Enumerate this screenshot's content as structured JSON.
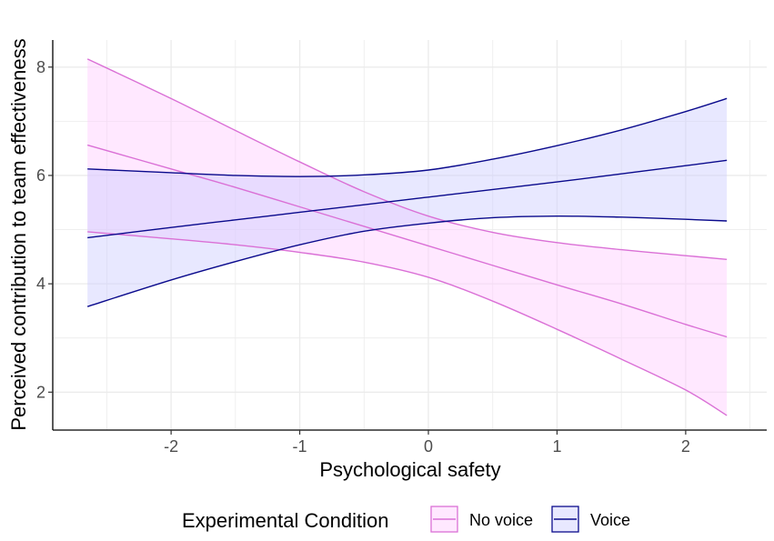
{
  "chart_data": {
    "type": "line",
    "xlabel": "Psychological safety",
    "ylabel": "Perceived contribution to team effectiveness",
    "xlim": [
      -2.92,
      2.63
    ],
    "ylim": [
      1.3,
      8.5
    ],
    "xticks": [
      -2,
      -1,
      0,
      1,
      2
    ],
    "xtick_labels": [
      "-2",
      "-1",
      "0",
      "1",
      "2"
    ],
    "yticks": [
      2,
      4,
      6,
      8
    ],
    "ytick_labels": [
      "2",
      "4",
      "6",
      "8"
    ],
    "grid": true,
    "legend": {
      "title": "Experimental Condition",
      "position": "bottom",
      "entries": [
        "No voice",
        "Voice"
      ]
    },
    "series": [
      {
        "name": "No voice",
        "color": "#DA70D6",
        "fill": "#FFCCFF",
        "x": [
          -2.65,
          -2.0,
          -1.5,
          -1.0,
          -0.5,
          0.0,
          0.5,
          1.0,
          1.5,
          2.0,
          2.32
        ],
        "fit": [
          6.56,
          6.12,
          5.78,
          5.42,
          5.06,
          4.7,
          4.34,
          3.98,
          3.63,
          3.25,
          3.02
        ],
        "lower": [
          4.96,
          4.83,
          4.72,
          4.58,
          4.4,
          4.12,
          3.68,
          3.16,
          2.61,
          2.04,
          1.57
        ],
        "upper": [
          8.15,
          7.42,
          6.83,
          6.25,
          5.7,
          5.25,
          4.95,
          4.76,
          4.63,
          4.52,
          4.45
        ]
      },
      {
        "name": "Voice",
        "color": "#0A0A8C",
        "fill": "#CCCCFF",
        "x": [
          -2.65,
          -2.0,
          -1.5,
          -1.0,
          -0.5,
          0.0,
          0.5,
          1.0,
          1.5,
          2.0,
          2.32
        ],
        "fit": [
          4.85,
          5.04,
          5.18,
          5.32,
          5.46,
          5.6,
          5.74,
          5.88,
          6.03,
          6.18,
          6.28
        ],
        "lower": [
          3.58,
          4.07,
          4.41,
          4.72,
          4.97,
          5.12,
          5.22,
          5.25,
          5.23,
          5.19,
          5.16
        ],
        "upper": [
          6.12,
          6.05,
          6.0,
          5.98,
          6.01,
          6.1,
          6.3,
          6.55,
          6.84,
          7.18,
          7.42
        ]
      }
    ]
  }
}
